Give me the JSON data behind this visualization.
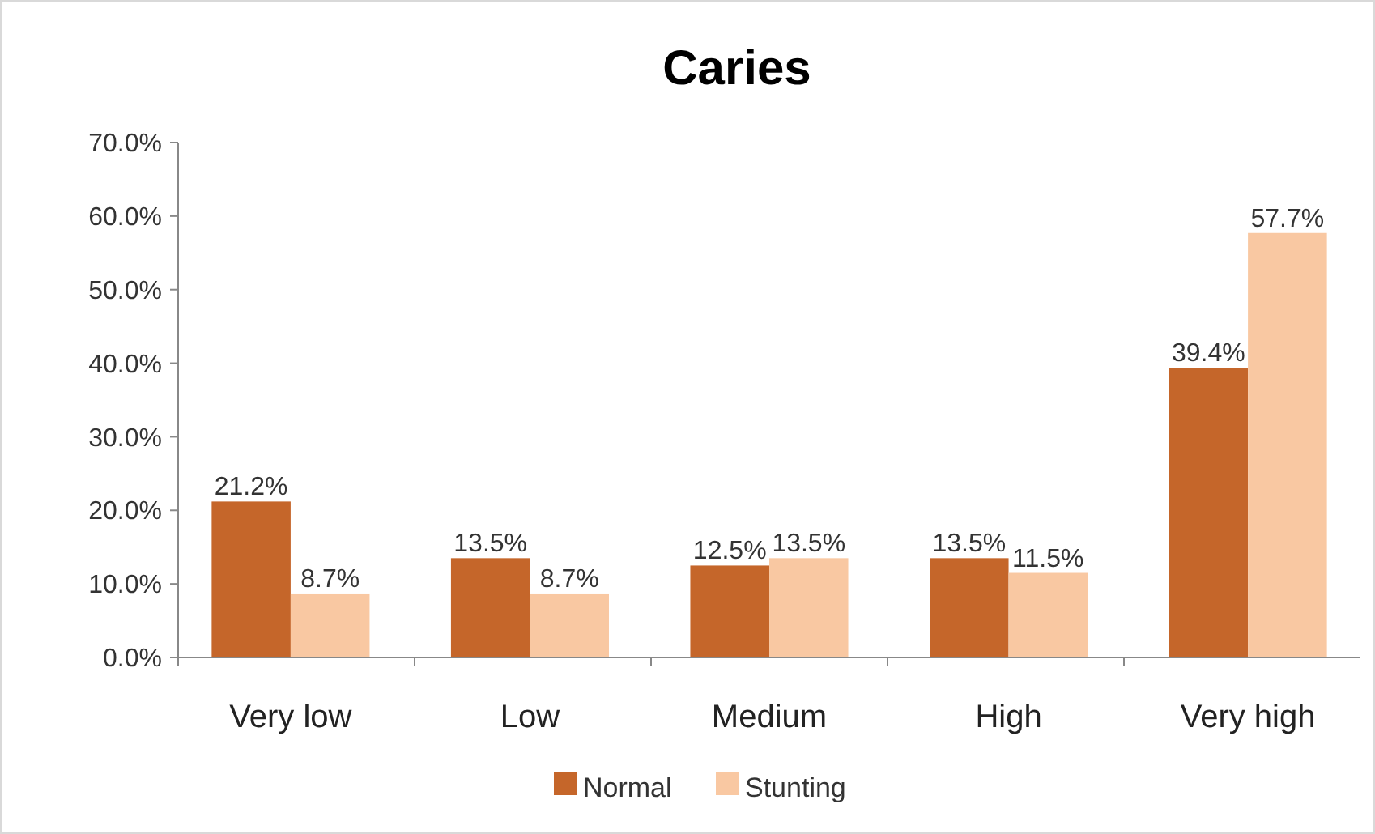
{
  "chart_data": {
    "type": "bar",
    "title": "Caries",
    "categories": [
      "Very low",
      "Low",
      "Medium",
      "High",
      "Very high"
    ],
    "series": [
      {
        "name": "Normal",
        "color": "#c5662a",
        "values": [
          21.2,
          13.5,
          12.5,
          13.5,
          39.4
        ],
        "value_labels": [
          "21.2%",
          "13.5%",
          "12.5%",
          "13.5%",
          "39.4%"
        ]
      },
      {
        "name": "Stunting",
        "color": "#f9c8a2",
        "values": [
          8.7,
          8.7,
          13.5,
          11.5,
          57.7
        ],
        "value_labels": [
          "8.7%",
          "8.7%",
          "13.5%",
          "11.5%",
          "57.7%"
        ]
      }
    ],
    "ylim": [
      0,
      70
    ],
    "yticks": [
      {
        "value": 0,
        "label": "0.0%"
      },
      {
        "value": 10,
        "label": "10.0%"
      },
      {
        "value": 20,
        "label": "20.0%"
      },
      {
        "value": 30,
        "label": "30.0%"
      },
      {
        "value": 40,
        "label": "40.0%"
      },
      {
        "value": 50,
        "label": "50.0%"
      },
      {
        "value": 60,
        "label": "60.0%"
      },
      {
        "value": 70,
        "label": "70.0%"
      }
    ],
    "grid": false,
    "legend": "bottom"
  }
}
